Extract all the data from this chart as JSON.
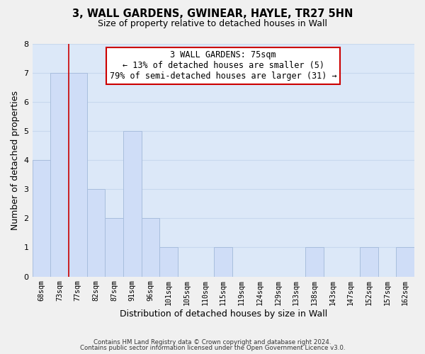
{
  "title": "3, WALL GARDENS, GWINEAR, HAYLE, TR27 5HN",
  "subtitle": "Size of property relative to detached houses in Wall",
  "xlabel": "Distribution of detached houses by size in Wall",
  "ylabel": "Number of detached properties",
  "bar_labels": [
    "68sqm",
    "73sqm",
    "77sqm",
    "82sqm",
    "87sqm",
    "91sqm",
    "96sqm",
    "101sqm",
    "105sqm",
    "110sqm",
    "115sqm",
    "119sqm",
    "124sqm",
    "129sqm",
    "133sqm",
    "138sqm",
    "143sqm",
    "147sqm",
    "152sqm",
    "157sqm",
    "162sqm"
  ],
  "bar_values": [
    4,
    7,
    7,
    3,
    2,
    5,
    2,
    1,
    0,
    0,
    1,
    0,
    0,
    0,
    0,
    1,
    0,
    0,
    1,
    0,
    1
  ],
  "bar_color": "#cfddf7",
  "bar_edge_color": "#a8bedd",
  "subject_line_color": "#cc0000",
  "subject_line_index": 1.5,
  "ylim": [
    0,
    8
  ],
  "yticks": [
    0,
    1,
    2,
    3,
    4,
    5,
    6,
    7,
    8
  ],
  "annotation_title": "3 WALL GARDENS: 75sqm",
  "annotation_line1": "← 13% of detached houses are smaller (5)",
  "annotation_line2": "79% of semi-detached houses are larger (31) →",
  "annotation_box_facecolor": "#ffffff",
  "annotation_box_edgecolor": "#cc0000",
  "footnote1": "Contains HM Land Registry data © Crown copyright and database right 2024.",
  "footnote2": "Contains public sector information licensed under the Open Government Licence v3.0.",
  "grid_color": "#c8d8ee",
  "plot_bg_color": "#dce8f8",
  "fig_bg_color": "#f0f0f0"
}
